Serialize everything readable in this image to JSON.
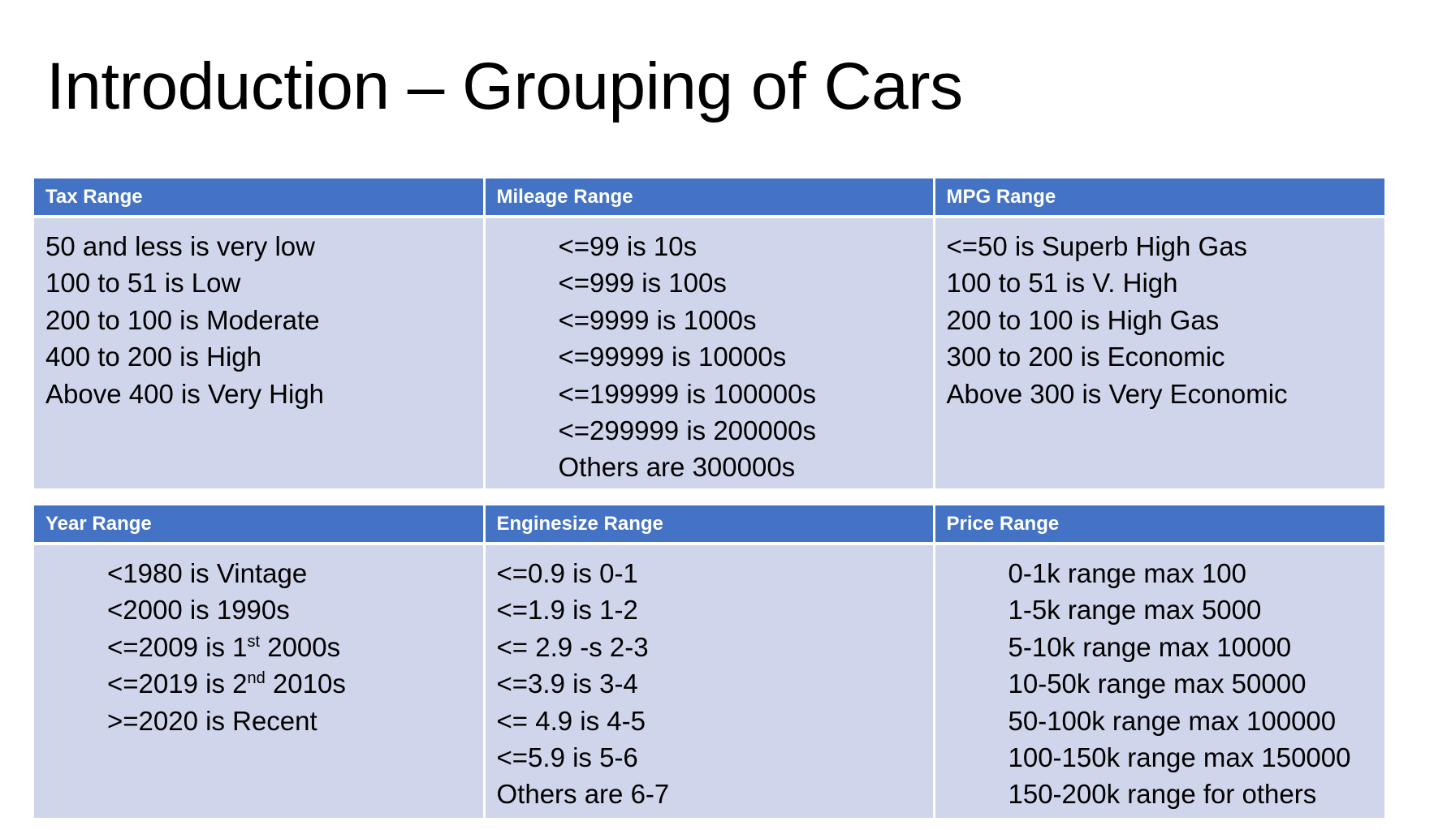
{
  "title": "Introduction – Grouping of Cars",
  "top_table": {
    "tax": {
      "header": "Tax Range",
      "lines": [
        "50 and less is very low",
        "100 to 51 is Low",
        "200 to 100 is Moderate",
        "400 to 200 is High",
        "Above 400 is Very High"
      ]
    },
    "mileage": {
      "header": "Mileage Range",
      "lines": [
        "<=99 is 10s",
        "<=999 is 100s",
        "<=9999 is 1000s",
        "<=99999 is 10000s",
        "<=199999 is 100000s",
        "<=299999 is 200000s",
        "Others are 300000s"
      ]
    },
    "mpg": {
      "header": "MPG Range",
      "lines": [
        "<=50 is Superb High Gas",
        "100 to 51 is V. High",
        "200 to 100 is High Gas",
        "300 to 200 is Economic",
        "Above 300 is Very Economic"
      ]
    }
  },
  "bottom_table": {
    "year": {
      "header": "Year Range",
      "line1": "<1980 is Vintage",
      "line2": "<2000 is 1990s",
      "line3_pre": "<=2009 is 1",
      "line3_sup": "st",
      "line3_post": " 2000s",
      "line4_pre": "<=2019 is 2",
      "line4_sup": "nd",
      "line4_post": " 2010s",
      "line5": ">=2020 is Recent"
    },
    "enginesize": {
      "header": "Enginesize Range",
      "lines": [
        "<=0.9 is 0-1",
        "<=1.9 is 1-2",
        "<= 2.9 -s 2-3",
        "<=3.9 is 3-4",
        "<= 4.9 is 4-5",
        "<=5.9 is 5-6",
        "Others are 6-7"
      ]
    },
    "price": {
      "header": "Price Range",
      "lines": [
        "0-1k range max 100",
        "1-5k range max 5000",
        "5-10k range max 10000",
        "10-50k range max 50000",
        "50-100k range max 100000",
        "100-150k range max 150000",
        "150-200k range for others"
      ]
    }
  },
  "colors": {
    "header_bg": "#4472c4",
    "cell_bg": "#cfd5ea",
    "header_text": "#ffffff"
  }
}
